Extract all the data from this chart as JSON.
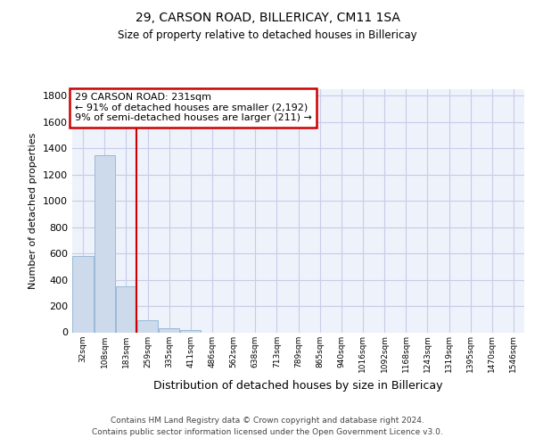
{
  "title": "29, CARSON ROAD, BILLERICAY, CM11 1SA",
  "subtitle": "Size of property relative to detached houses in Billericay",
  "xlabel": "Distribution of detached houses by size in Billericay",
  "ylabel": "Number of detached properties",
  "bin_labels": [
    "32sqm",
    "108sqm",
    "183sqm",
    "259sqm",
    "335sqm",
    "411sqm",
    "486sqm",
    "562sqm",
    "638sqm",
    "713sqm",
    "789sqm",
    "865sqm",
    "940sqm",
    "1016sqm",
    "1092sqm",
    "1168sqm",
    "1243sqm",
    "1319sqm",
    "1395sqm",
    "1470sqm",
    "1546sqm"
  ],
  "bar_values": [
    580,
    1350,
    350,
    90,
    30,
    20,
    0,
    0,
    0,
    0,
    0,
    0,
    0,
    0,
    0,
    0,
    0,
    0,
    0,
    0,
    0
  ],
  "bar_color": "#ccdaeb",
  "bar_edge_color": "#9ab8d8",
  "grid_color": "#c8cce8",
  "bg_color": "#eef2fb",
  "property_line_x": 2.5,
  "annotation_text": "29 CARSON ROAD: 231sqm\n← 91% of detached houses are smaller (2,192)\n9% of semi-detached houses are larger (211) →",
  "annotation_box_color": "#cc0000",
  "ylim": [
    0,
    1850
  ],
  "yticks": [
    0,
    200,
    400,
    600,
    800,
    1000,
    1200,
    1400,
    1600,
    1800
  ],
  "footer_line1": "Contains HM Land Registry data © Crown copyright and database right 2024.",
  "footer_line2": "Contains public sector information licensed under the Open Government Licence v3.0."
}
